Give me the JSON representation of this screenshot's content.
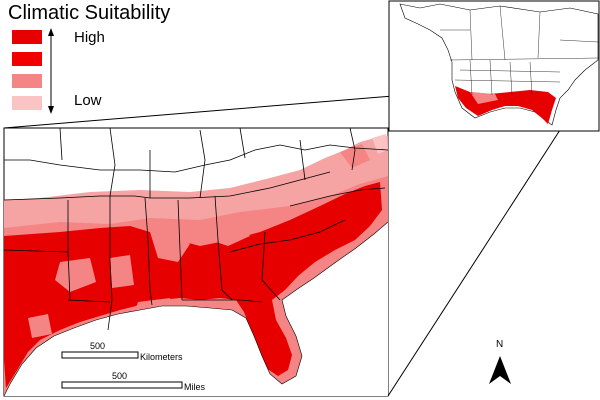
{
  "legend": {
    "title": "Climatic Suitability",
    "high_label": "High",
    "low_label": "Low",
    "classes": [
      {
        "color": "#e60000"
      },
      {
        "color": "#f20000"
      },
      {
        "color": "#f58484"
      },
      {
        "color": "#fbc4c4"
      }
    ]
  },
  "scalebar": {
    "km_value": "500",
    "km_unit": "Kilometers",
    "mi_value": "500",
    "mi_unit": "Miles"
  },
  "north_arrow": {
    "label": "N"
  },
  "colors": {
    "high": "#e60000",
    "mid_high": "#f20000",
    "mid_low": "#f58484",
    "low": "#fbc4c4",
    "border": "#000000"
  }
}
